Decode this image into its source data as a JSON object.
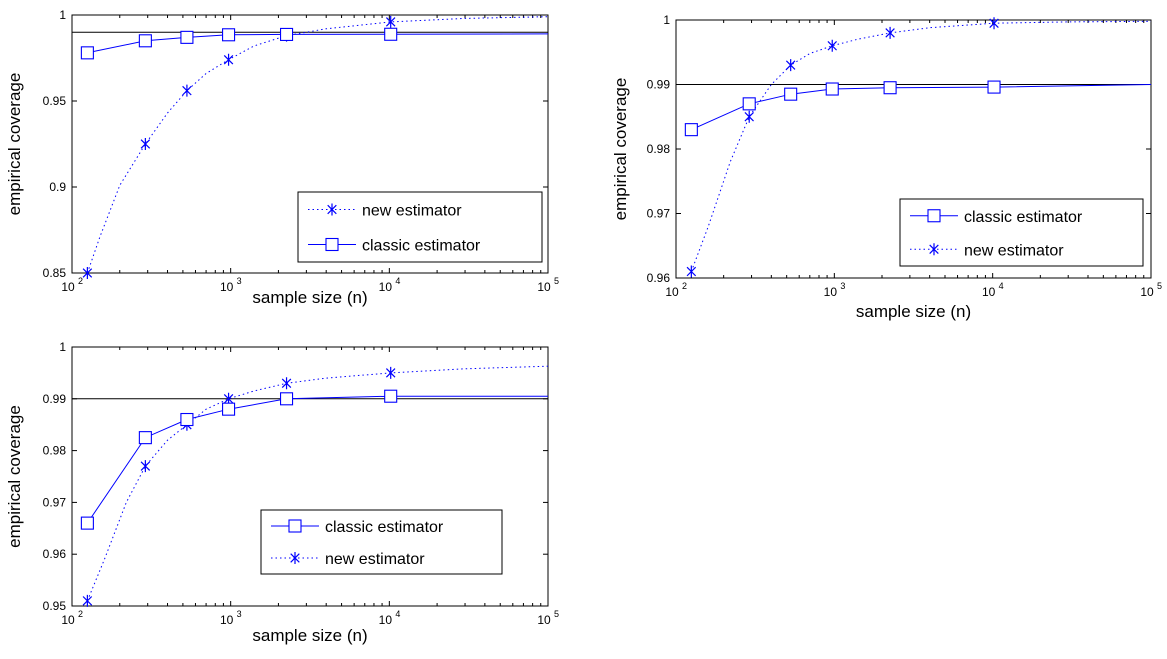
{
  "chart_data": [
    {
      "type": "line",
      "xlabel": "sample size (n)",
      "ylabel": "empirical coverage",
      "xscale": "log",
      "xlim": [
        100,
        100000
      ],
      "ylim": [
        0.85,
        1
      ],
      "xticks": [
        "10",
        "10",
        "10",
        "10"
      ],
      "xtick_exps": [
        "2",
        "3",
        "4",
        "5"
      ],
      "yticks": [
        "0.85",
        "0.9",
        "0.95",
        "1"
      ],
      "ytick_values": [
        0.85,
        0.9,
        0.95,
        1
      ],
      "reference_line": 0.99,
      "legend_position": "lower-right",
      "legend_order": [
        "new",
        "classic"
      ],
      "series": [
        {
          "name": "new estimator",
          "key": "new",
          "style": "dotted",
          "marker": "asterisk",
          "color": "#0000ff",
          "x": [
            125,
            290,
            530,
            970,
            2250,
            10200
          ],
          "y": [
            0.85,
            0.925,
            0.956,
            0.974,
            0.988,
            0.996
          ],
          "curve_x": [
            125,
            150,
            200,
            290,
            400,
            530,
            700,
            970,
            1400,
            2250,
            4000,
            10200,
            30000,
            100000
          ],
          "curve_y": [
            0.85,
            0.871,
            0.901,
            0.925,
            0.943,
            0.956,
            0.966,
            0.974,
            0.982,
            0.988,
            0.992,
            0.996,
            0.998,
            0.999
          ]
        },
        {
          "name": "classic estimator",
          "key": "classic",
          "style": "solid",
          "marker": "square",
          "color": "#0000ff",
          "x": [
            125,
            290,
            530,
            970,
            2250,
            10200
          ],
          "y": [
            0.978,
            0.985,
            0.987,
            0.9885,
            0.9887,
            0.9888
          ],
          "curve_x": [
            125,
            290,
            530,
            970,
            2250,
            10200,
            100000
          ],
          "curve_y": [
            0.978,
            0.985,
            0.987,
            0.9885,
            0.9887,
            0.9888,
            0.989
          ]
        }
      ]
    },
    {
      "type": "line",
      "xlabel": "sample size (n)",
      "ylabel": "empirical coverage",
      "xscale": "log",
      "xlim": [
        100,
        100000
      ],
      "ylim": [
        0.96,
        1
      ],
      "xticks": [
        "10",
        "10",
        "10",
        "10"
      ],
      "xtick_exps": [
        "2",
        "3",
        "4",
        "5"
      ],
      "yticks": [
        "0.96",
        "0.97",
        "0.98",
        "0.99",
        "1"
      ],
      "ytick_values": [
        0.96,
        0.97,
        0.98,
        0.99,
        1
      ],
      "reference_line": 0.99,
      "legend_position": "lower-right",
      "legend_order": [
        "classic",
        "new"
      ],
      "series": [
        {
          "name": "new estimator",
          "key": "new",
          "style": "dotted",
          "marker": "asterisk",
          "color": "#0000ff",
          "x": [
            125,
            290,
            530,
            970,
            2250,
            10200
          ],
          "y": [
            0.961,
            0.985,
            0.993,
            0.996,
            0.998,
            0.9995
          ],
          "curve_x": [
            125,
            160,
            220,
            290,
            400,
            530,
            700,
            970,
            1400,
            2250,
            4000,
            10200,
            30000,
            100000
          ],
          "curve_y": [
            0.961,
            0.968,
            0.978,
            0.985,
            0.99,
            0.993,
            0.9948,
            0.996,
            0.997,
            0.998,
            0.9988,
            0.9995,
            0.9997,
            0.9998
          ]
        },
        {
          "name": "classic estimator",
          "key": "classic",
          "style": "solid",
          "marker": "square",
          "color": "#0000ff",
          "x": [
            125,
            290,
            530,
            970,
            2250,
            10200
          ],
          "y": [
            0.983,
            0.987,
            0.9885,
            0.9893,
            0.9895,
            0.9896
          ],
          "curve_x": [
            125,
            290,
            530,
            970,
            2250,
            10200,
            100000
          ],
          "curve_y": [
            0.983,
            0.987,
            0.9885,
            0.9893,
            0.9895,
            0.9896,
            0.99
          ]
        }
      ]
    },
    {
      "type": "line",
      "xlabel": "sample size (n)",
      "ylabel": "empirical coverage",
      "xscale": "log",
      "xlim": [
        100,
        100000
      ],
      "ylim": [
        0.95,
        1
      ],
      "xticks": [
        "10",
        "10",
        "10",
        "10"
      ],
      "xtick_exps": [
        "2",
        "3",
        "4",
        "5"
      ],
      "yticks": [
        "0.95",
        "0.96",
        "0.97",
        "0.98",
        "0.99",
        "1"
      ],
      "ytick_values": [
        0.95,
        0.96,
        0.97,
        0.98,
        0.99,
        1
      ],
      "reference_line": 0.99,
      "legend_position": "lower-right",
      "legend_order": [
        "classic",
        "new"
      ],
      "series": [
        {
          "name": "new estimator",
          "key": "new",
          "style": "dotted",
          "marker": "asterisk",
          "color": "#0000ff",
          "x": [
            125,
            290,
            530,
            970,
            2250,
            10200
          ],
          "y": [
            0.951,
            0.977,
            0.985,
            0.99,
            0.993,
            0.995
          ],
          "curve_x": [
            125,
            160,
            220,
            290,
            400,
            530,
            700,
            970,
            1400,
            2250,
            4000,
            10200,
            30000,
            100000
          ],
          "curve_y": [
            0.951,
            0.959,
            0.97,
            0.977,
            0.982,
            0.985,
            0.988,
            0.99,
            0.9915,
            0.993,
            0.994,
            0.995,
            0.9958,
            0.9963
          ]
        },
        {
          "name": "classic estimator",
          "key": "classic",
          "style": "solid",
          "marker": "square",
          "color": "#0000ff",
          "x": [
            125,
            290,
            530,
            970,
            2250,
            10200
          ],
          "y": [
            0.966,
            0.9825,
            0.986,
            0.988,
            0.99,
            0.9905
          ],
          "curve_x": [
            125,
            290,
            530,
            970,
            2250,
            10200,
            100000
          ],
          "curve_y": [
            0.966,
            0.9825,
            0.986,
            0.988,
            0.99,
            0.9905,
            0.9905
          ]
        }
      ]
    }
  ]
}
